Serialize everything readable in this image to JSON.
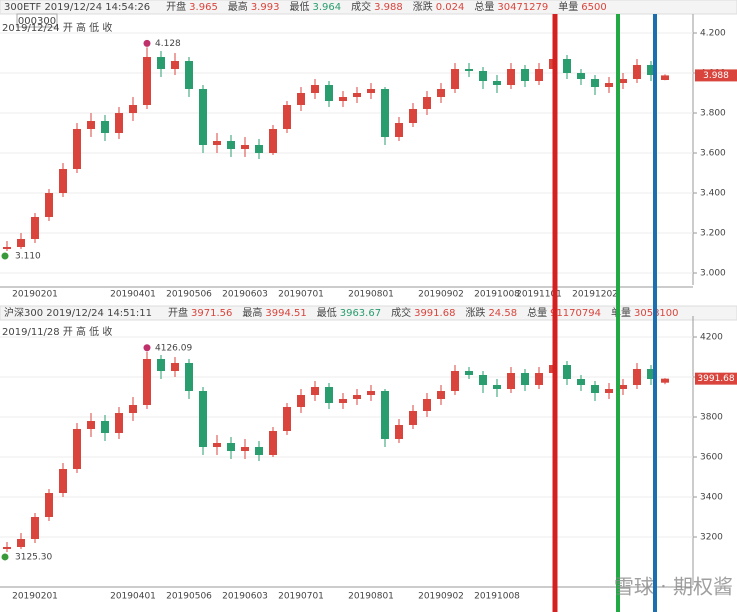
{
  "chart_data": [
    {
      "type": "candlestick",
      "header_title": "300ETF 2019/12/24 14:54:26",
      "header": [
        {
          "label": "开盘",
          "value": "3.965",
          "color": "#d9453d"
        },
        {
          "label": "最高",
          "value": "3.993",
          "color": "#d9453d"
        },
        {
          "label": "最低",
          "value": "3.964",
          "color": "#2a9d6f"
        },
        {
          "label": "成交",
          "value": "3.988",
          "color": "#d9453d"
        },
        {
          "label": "涨跌",
          "value": "0.024",
          "color": "#d9453d"
        },
        {
          "label": "总量",
          "value": "30471279",
          "color": "#d9453d"
        },
        {
          "label": "单量",
          "value": "6500",
          "color": "#d9453d"
        }
      ],
      "code": "000300",
      "legend_text": "2019/12/24 开 高 低 收",
      "up_color": "#d9453d",
      "down_color": "#2a9d6f",
      "categories": [
        null,
        null,
        "20190201",
        null,
        null,
        null,
        null,
        null,
        null,
        "20190401",
        null,
        null,
        null,
        "20190506",
        null,
        null,
        null,
        "20190603",
        null,
        null,
        null,
        "20190701",
        null,
        null,
        null,
        null,
        "20190801",
        null,
        null,
        null,
        null,
        "20190902",
        null,
        null,
        null,
        "20191008",
        null,
        null,
        "20191101",
        null,
        null,
        null,
        "20191202",
        null,
        null,
        null,
        null,
        null
      ],
      "open": [
        3.12,
        3.13,
        3.17,
        3.28,
        3.4,
        3.52,
        3.72,
        3.76,
        3.7,
        3.8,
        3.84,
        4.08,
        4.02,
        4.06,
        3.92,
        3.64,
        3.66,
        3.62,
        3.64,
        3.6,
        3.72,
        3.84,
        3.9,
        3.94,
        3.86,
        3.88,
        3.9,
        3.92,
        3.68,
        3.75,
        3.82,
        3.88,
        3.92,
        4.02,
        4.01,
        3.96,
        3.94,
        4.02,
        3.96,
        4.02,
        4.07,
        4.0,
        3.97,
        3.93,
        3.95,
        3.97,
        4.04,
        3.965
      ],
      "high": [
        3.16,
        3.2,
        3.3,
        3.42,
        3.55,
        3.75,
        3.8,
        3.79,
        3.83,
        3.88,
        4.128,
        4.11,
        4.1,
        4.08,
        3.94,
        3.7,
        3.69,
        3.68,
        3.67,
        3.74,
        3.86,
        3.93,
        3.97,
        3.96,
        3.91,
        3.93,
        3.95,
        3.93,
        3.78,
        3.85,
        3.91,
        3.95,
        4.05,
        4.05,
        4.03,
        3.99,
        4.05,
        4.04,
        4.05,
        4.1,
        4.09,
        4.02,
        3.99,
        3.98,
        4.0,
        4.07,
        4.06,
        3.993
      ],
      "low": [
        3.11,
        3.12,
        3.15,
        3.26,
        3.38,
        3.5,
        3.68,
        3.66,
        3.67,
        3.76,
        3.82,
        3.98,
        3.99,
        3.88,
        3.6,
        3.6,
        3.58,
        3.58,
        3.57,
        3.59,
        3.7,
        3.81,
        3.87,
        3.83,
        3.83,
        3.85,
        3.87,
        3.64,
        3.66,
        3.73,
        3.79,
        3.85,
        3.9,
        3.98,
        3.92,
        3.9,
        3.92,
        3.93,
        3.94,
        3.99,
        3.97,
        3.94,
        3.89,
        3.9,
        3.92,
        3.95,
        3.96,
        3.964
      ],
      "close": [
        3.13,
        3.17,
        3.28,
        3.4,
        3.52,
        3.72,
        3.76,
        3.7,
        3.8,
        3.84,
        4.08,
        4.02,
        4.06,
        3.92,
        3.64,
        3.66,
        3.62,
        3.64,
        3.6,
        3.72,
        3.84,
        3.9,
        3.94,
        3.86,
        3.88,
        3.9,
        3.92,
        3.68,
        3.75,
        3.82,
        3.88,
        3.92,
        4.02,
        4.01,
        3.96,
        3.94,
        4.02,
        3.96,
        4.02,
        4.07,
        4.0,
        3.97,
        3.93,
        3.95,
        3.97,
        4.04,
        3.99,
        3.988
      ],
      "last_label": "3.988",
      "max_label": "4.128",
      "min_label": "3.110",
      "ylim": [
        2.94,
        4.265
      ],
      "yticks": [
        {
          "value": 3,
          "label": "3.000"
        },
        {
          "value": 3.2,
          "label": "3.200"
        },
        {
          "value": 3.4,
          "label": "3.400"
        },
        {
          "value": 3.6,
          "label": "3.600"
        },
        {
          "value": 3.8,
          "label": "3.800"
        },
        {
          "value": 4,
          "label": "4.000"
        },
        {
          "value": 4.2,
          "label": "4.200"
        }
      ],
      "grid": true
    },
    {
      "type": "candlestick",
      "header_title": "沪深300 2019/12/24 14:51:11",
      "header": [
        {
          "label": "开盘",
          "value": "3971.56",
          "color": "#d9453d"
        },
        {
          "label": "最高",
          "value": "3994.51",
          "color": "#d9453d"
        },
        {
          "label": "最低",
          "value": "3963.67",
          "color": "#2a9d6f"
        },
        {
          "label": "成交",
          "value": "3991.68",
          "color": "#d9453d"
        },
        {
          "label": "涨跌",
          "value": "24.58",
          "color": "#d9453d"
        },
        {
          "label": "总量",
          "value": "91170794",
          "color": "#d9453d"
        },
        {
          "label": "单量",
          "value": "3058100",
          "color": "#d9453d"
        }
      ],
      "legend_text": "2019/11/28 开 高 低 收",
      "up_color": "#d9453d",
      "down_color": "#2a9d6f",
      "categories": [
        null,
        null,
        "20190201",
        null,
        null,
        null,
        null,
        null,
        null,
        "20190401",
        null,
        null,
        null,
        "20190506",
        null,
        null,
        null,
        "20190603",
        null,
        null,
        null,
        "20190701",
        null,
        null,
        null,
        null,
        "20190801",
        null,
        null,
        null,
        null,
        "20190902",
        null,
        null,
        null,
        "20191008",
        null,
        null,
        null,
        null,
        null,
        null,
        null,
        null,
        null,
        null,
        null,
        null
      ],
      "open": [
        3140,
        3150,
        3190,
        3300,
        3420,
        3540,
        3740,
        3780,
        3720,
        3820,
        3860,
        4090,
        4030,
        4070,
        3930,
        3650,
        3670,
        3630,
        3650,
        3610,
        3730,
        3850,
        3910,
        3950,
        3870,
        3890,
        3910,
        3930,
        3690,
        3760,
        3830,
        3890,
        3930,
        4030,
        4010,
        3960,
        3940,
        4020,
        3960,
        4020,
        4060,
        3990,
        3960,
        3920,
        3940,
        3960,
        4040,
        3971.56
      ],
      "high": [
        3175,
        3220,
        3320,
        3440,
        3570,
        3770,
        3820,
        3810,
        3850,
        3900,
        4126.09,
        4110,
        4100,
        4090,
        3950,
        3710,
        3700,
        3690,
        3680,
        3750,
        3870,
        3940,
        3980,
        3970,
        3920,
        3940,
        3960,
        3940,
        3790,
        3860,
        3920,
        3960,
        4060,
        4050,
        4030,
        3990,
        4050,
        4040,
        4050,
        4090,
        4080,
        4010,
        3980,
        3970,
        3990,
        4070,
        4060,
        3994.51
      ],
      "low": [
        3125.3,
        3140,
        3170,
        3280,
        3400,
        3520,
        3700,
        3680,
        3690,
        3780,
        3840,
        3990,
        4000,
        3890,
        3610,
        3610,
        3590,
        3590,
        3580,
        3600,
        3710,
        3820,
        3880,
        3840,
        3840,
        3860,
        3880,
        3650,
        3670,
        3740,
        3800,
        3860,
        3910,
        3990,
        3920,
        3900,
        3920,
        3930,
        3940,
        3990,
        3960,
        3930,
        3880,
        3890,
        3910,
        3940,
        3960,
        3963.67
      ],
      "close": [
        3150,
        3190,
        3300,
        3420,
        3540,
        3740,
        3780,
        3720,
        3820,
        3860,
        4090,
        4030,
        4070,
        3930,
        3650,
        3670,
        3630,
        3650,
        3610,
        3730,
        3850,
        3910,
        3950,
        3870,
        3890,
        3910,
        3930,
        3690,
        3760,
        3830,
        3890,
        3930,
        4030,
        4010,
        3960,
        3940,
        4020,
        3960,
        4020,
        4060,
        3990,
        3960,
        3920,
        3940,
        3960,
        4040,
        3990,
        3991.68
      ],
      "last_label": "3991.68",
      "max_label": "4126.09",
      "min_label": "3125.30",
      "ylim": [
        2960,
        4275
      ],
      "yticks": [
        3200,
        3400,
        3600,
        3800,
        4000,
        4200
      ],
      "grid": true
    }
  ],
  "watermark": "雪球 · 期权酱"
}
